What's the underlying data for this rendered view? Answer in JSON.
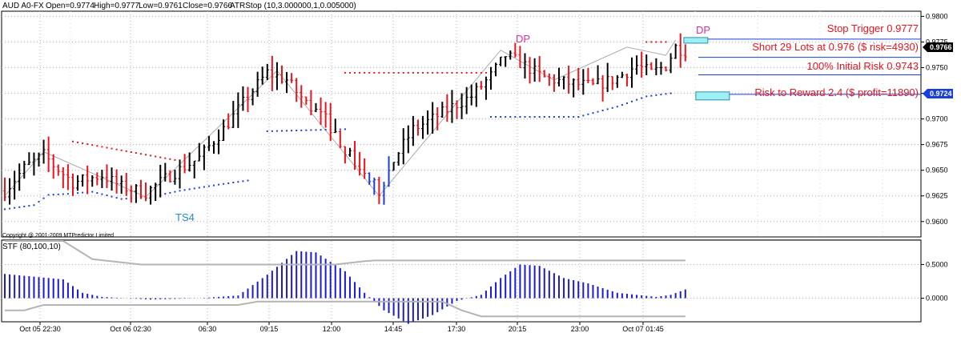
{
  "header": {
    "symbol": "AUD A0-FX",
    "open": "Open=0.9774",
    "high": "High=0.9777",
    "low": "Low=0.9761",
    "close": "Close=0.9766",
    "indicator": "ATRStop (10,3.000000,1,0.005000)"
  },
  "copyright": "Copyright @ 2001-2009 MTPredictor Limited",
  "lower_panel_title": "STF (80,100,10)",
  "annotations": {
    "stop_trigger": "Stop Trigger 0.9777",
    "short_entry": "Short 29 Lots at 0.976 ($ risk=4930)",
    "initial_risk": "100% Initial Risk 0.9743",
    "risk_reward": "Risk to Reward 2.4 ($ profit=11890)",
    "dp_label_1": "DP",
    "dp_label_2": "DP",
    "ts_label": "TS4",
    "price_tag_current": "0.9766",
    "price_tag_target": "0.9724"
  },
  "colors": {
    "up_bar": "#000000",
    "down_bar": "#e8141e",
    "blue_bar": "#1a3fd6",
    "stop_dots_red": "#e8141e",
    "stop_dots_blue": "#1a3fd6",
    "zigzag": "#aaaaaa",
    "histogram": "#1a1ad6",
    "stf_line": "#b4b4b4",
    "box_fill": "#9cf0f6",
    "annotation_red": "#e8141e",
    "dp_magenta": "#d0349a",
    "ts_cyan": "#1f8fbf"
  },
  "chart_data": [
    {
      "type": "bar",
      "subtype": "ohlc",
      "x_tick_labels": [
        "Oct 05 22:30",
        "Oct 06 02:30",
        "06:30",
        "09:15",
        "12:00",
        "14:45",
        "17:30",
        "20:15",
        "23:00",
        "Oct 07 01:45"
      ],
      "y_tick_labels": [
        "0.9800",
        "0.9775",
        "0.9750",
        "0.9725",
        "0.9700",
        "0.9675",
        "0.9650",
        "0.9625",
        "0.9600"
      ],
      "y_range": [
        0.9585,
        0.9805
      ],
      "grid": true,
      "close_path": [
        [
          0,
          0.963
        ],
        [
          4,
          0.9652
        ],
        [
          8,
          0.9665
        ],
        [
          10,
          0.9655
        ],
        [
          14,
          0.9638
        ],
        [
          20,
          0.9645
        ],
        [
          24,
          0.9634
        ],
        [
          29,
          0.9628
        ],
        [
          34,
          0.9645
        ],
        [
          40,
          0.9662
        ],
        [
          45,
          0.969
        ],
        [
          50,
          0.9722
        ],
        [
          54,
          0.9745
        ],
        [
          58,
          0.9738
        ],
        [
          62,
          0.9715
        ],
        [
          66,
          0.97
        ],
        [
          70,
          0.967
        ],
        [
          74,
          0.9645
        ],
        [
          77,
          0.963
        ],
        [
          80,
          0.966
        ],
        [
          84,
          0.969
        ],
        [
          88,
          0.97
        ],
        [
          92,
          0.9712
        ],
        [
          96,
          0.9722
        ],
        [
          100,
          0.9742
        ],
        [
          103,
          0.9762
        ],
        [
          107,
          0.9752
        ],
        [
          111,
          0.974
        ],
        [
          116,
          0.9735
        ],
        [
          121,
          0.9732
        ],
        [
          126,
          0.974
        ],
        [
          130,
          0.9752
        ],
        [
          133,
          0.9745
        ],
        [
          136,
          0.9752
        ],
        [
          138,
          0.977
        ],
        [
          140,
          0.9766
        ]
      ],
      "atr_stop_red": [
        [
          [
            14,
            0.9678
          ],
          [
            35,
            0.966
          ]
        ],
        [
          [
            70,
            0.9745
          ],
          [
            100,
            0.9745
          ]
        ],
        [
          [
            132,
            0.9775
          ],
          [
            136,
            0.9775
          ]
        ]
      ],
      "atr_stop_blue": [
        [
          [
            0,
            0.9612
          ],
          [
            6,
            0.9616
          ],
          [
            9,
            0.9626
          ],
          [
            13,
            0.9627
          ],
          [
            18,
            0.9629
          ],
          [
            24,
            0.9622
          ],
          [
            30,
            0.9624
          ],
          [
            36,
            0.963
          ],
          [
            44,
            0.9636
          ],
          [
            50,
            0.964
          ]
        ],
        [
          [
            54,
            0.9688
          ],
          [
            70,
            0.969
          ]
        ],
        [
          [
            100,
            0.9702
          ],
          [
            118,
            0.9702
          ],
          [
            126,
            0.9712
          ],
          [
            132,
            0.9722
          ],
          [
            137,
            0.9725
          ]
        ]
      ],
      "zigzag": [
        [
          0,
          0.9625
        ],
        [
          8,
          0.9668
        ],
        [
          29,
          0.9624
        ],
        [
          56,
          0.9747
        ],
        [
          77,
          0.9625
        ],
        [
          102,
          0.9767
        ],
        [
          113,
          0.9738
        ],
        [
          128,
          0.977
        ],
        [
          136,
          0.9762
        ],
        [
          138,
          0.9777
        ]
      ],
      "levels": {
        "stop_trigger": 0.9777,
        "short_entry": 0.976,
        "initial_risk": 0.9743,
        "target": 0.9724
      }
    },
    {
      "type": "bar",
      "subtype": "oscillator-histogram",
      "title": "STF (80,100,10)",
      "y_tick_labels": [
        "0.5000",
        "0.0000"
      ],
      "y_range": [
        -0.35,
        0.85
      ],
      "histogram_keypoints": [
        [
          0,
          0.36
        ],
        [
          12,
          0.28
        ],
        [
          16,
          0.08
        ],
        [
          20,
          0.02
        ],
        [
          30,
          -0.02
        ],
        [
          40,
          0.0
        ],
        [
          48,
          0.04
        ],
        [
          54,
          0.35
        ],
        [
          60,
          0.7
        ],
        [
          64,
          0.68
        ],
        [
          70,
          0.4
        ],
        [
          74,
          0.08
        ],
        [
          78,
          -0.18
        ],
        [
          83,
          -0.38
        ],
        [
          88,
          -0.25
        ],
        [
          93,
          -0.04
        ],
        [
          98,
          0.05
        ],
        [
          102,
          0.3
        ],
        [
          106,
          0.5
        ],
        [
          110,
          0.48
        ],
        [
          115,
          0.3
        ],
        [
          120,
          0.22
        ],
        [
          126,
          0.08
        ],
        [
          134,
          0.02
        ],
        [
          137,
          0.05
        ],
        [
          140,
          0.13
        ]
      ],
      "stf_upper": [
        [
          0,
          0.85
        ],
        [
          12,
          0.85
        ],
        [
          18,
          0.58
        ],
        [
          28,
          0.5
        ],
        [
          68,
          0.5
        ],
        [
          74,
          0.55
        ],
        [
          76,
          0.56
        ],
        [
          140,
          0.56
        ]
      ],
      "stf_lower": [
        [
          0,
          -0.18
        ],
        [
          4,
          -0.18
        ],
        [
          8,
          -0.1
        ],
        [
          48,
          -0.1
        ],
        [
          52,
          -0.05
        ],
        [
          64,
          -0.05
        ],
        [
          76,
          -0.05
        ],
        [
          90,
          -0.05
        ],
        [
          94,
          -0.18
        ],
        [
          98,
          -0.27
        ],
        [
          140,
          -0.27
        ]
      ]
    }
  ]
}
